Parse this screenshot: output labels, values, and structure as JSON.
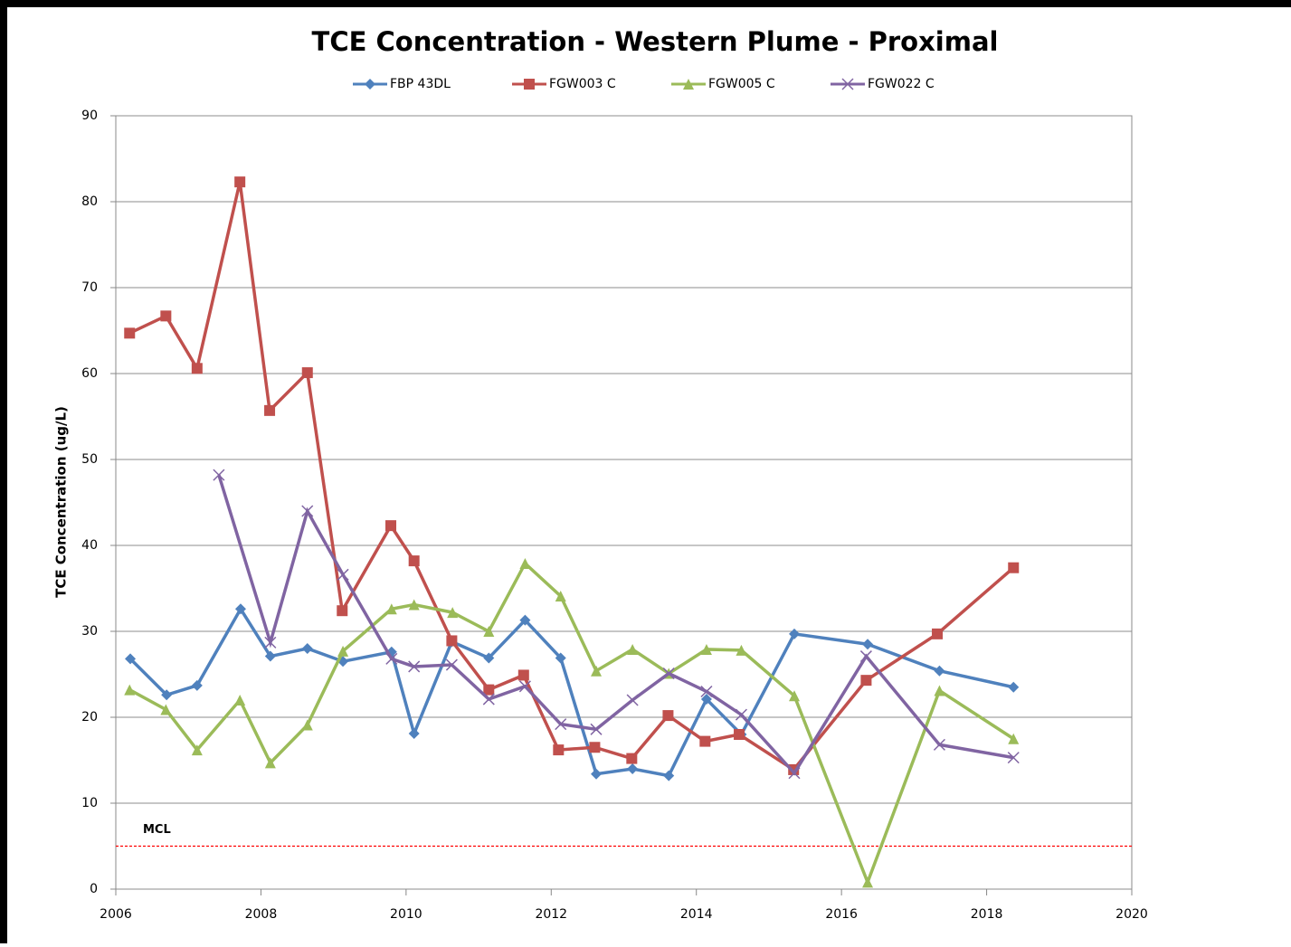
{
  "chart_data": {
    "type": "line",
    "title": "TCE Concentration - Western Plume - Proximal",
    "y_label": "TCE Concentration (ug/L)",
    "xlim": [
      2006,
      2020
    ],
    "xticks": [
      2006,
      2008,
      2010,
      2012,
      2014,
      2016,
      2018,
      2020
    ],
    "ylim": [
      0,
      90
    ],
    "yticks": [
      0,
      10,
      20,
      30,
      40,
      50,
      60,
      70,
      80,
      90
    ],
    "grid": true,
    "legend": "top",
    "annotations": [
      {
        "text": "MCL",
        "value": 5,
        "color": "#ff0000"
      }
    ],
    "series": [
      {
        "name": "FBP 43DL",
        "color": "#4f81bd",
        "marker": "diamond",
        "x": [
          2006.2,
          2006.7,
          2007.12,
          2007.72,
          2008.13,
          2008.64,
          2009.13,
          2009.8,
          2010.11,
          2010.63,
          2011.14,
          2011.64,
          2012.13,
          2012.62,
          2013.12,
          2013.62,
          2014.14,
          2014.62,
          2015.35,
          2016.36,
          2017.35,
          2018.37
        ],
        "values": [
          26.8,
          22.6,
          23.7,
          32.6,
          27.1,
          28.0,
          26.5,
          27.6,
          18.1,
          28.8,
          26.9,
          31.3,
          26.9,
          13.4,
          14.0,
          13.2,
          22.1,
          18.0,
          29.7,
          28.5,
          25.4,
          23.5
        ]
      },
      {
        "name": "FGW003 C",
        "color": "#c0504d",
        "marker": "square",
        "x": [
          2006.19,
          2006.69,
          2007.12,
          2007.71,
          2008.12,
          2008.64,
          2009.12,
          2009.79,
          2010.11,
          2010.63,
          2011.14,
          2011.62,
          2012.1,
          2012.6,
          2013.11,
          2013.61,
          2014.12,
          2014.59,
          2015.34,
          2016.34,
          2017.32,
          2018.37
        ],
        "values": [
          64.7,
          66.7,
          60.6,
          82.3,
          55.7,
          60.1,
          32.4,
          42.3,
          38.2,
          28.9,
          23.2,
          24.9,
          16.2,
          16.5,
          15.2,
          20.2,
          17.2,
          18.0,
          13.9,
          24.3,
          29.7,
          37.4
        ]
      },
      {
        "name": "FGW005 C",
        "color": "#9bbb59",
        "marker": "triangle",
        "x": [
          2006.19,
          2006.69,
          2007.12,
          2007.71,
          2008.13,
          2008.64,
          2009.13,
          2009.8,
          2010.11,
          2010.64,
          2011.14,
          2011.64,
          2012.13,
          2012.62,
          2013.12,
          2013.62,
          2014.14,
          2014.62,
          2015.35,
          2016.36,
          2017.35,
          2018.37
        ],
        "values": [
          23.2,
          20.9,
          16.2,
          22.0,
          14.7,
          19.1,
          27.7,
          32.6,
          33.1,
          32.2,
          30.0,
          37.9,
          34.1,
          25.4,
          27.9,
          25.1,
          27.9,
          27.8,
          22.5,
          0.8,
          23.1,
          17.5
        ]
      },
      {
        "name": "FGW022 C",
        "color": "#8064a2",
        "marker": "x",
        "x": [
          2007.42,
          2008.13,
          2008.64,
          2009.13,
          2009.8,
          2010.11,
          2010.63,
          2011.14,
          2011.64,
          2012.13,
          2012.62,
          2013.12,
          2013.62,
          2014.14,
          2014.62,
          2015.35,
          2016.34,
          2017.35,
          2018.37
        ],
        "values": [
          48.2,
          28.7,
          44.0,
          36.6,
          26.8,
          25.9,
          26.1,
          22.1,
          23.6,
          19.2,
          18.6,
          22.0,
          25.1,
          23.0,
          20.3,
          13.5,
          27.1,
          16.8,
          15.3
        ]
      }
    ]
  }
}
